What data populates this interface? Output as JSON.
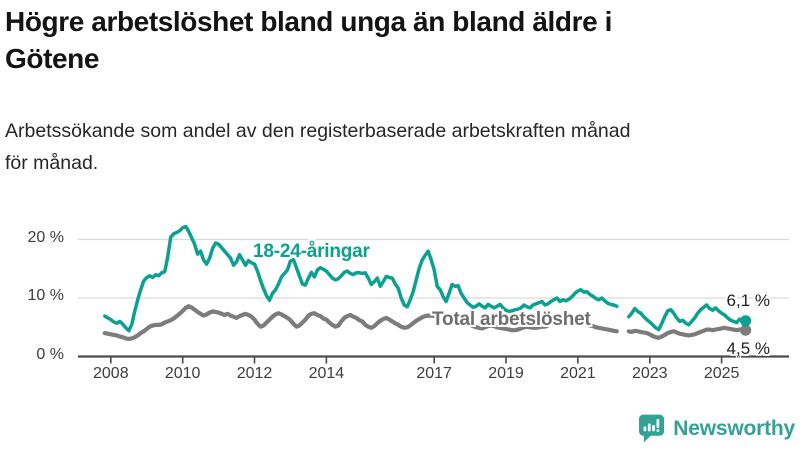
{
  "header": {
    "title": "Högre arbetslöshet bland unga än bland äldre i Götene",
    "title_lines": [
      "Högre arbetslöshet bland unga än bland äldre i",
      "Götene"
    ],
    "subtitle": "Arbetssökande som andel av den registerbaserade arbetskraften månad för månad.",
    "subtitle_lines": [
      "Arbetssökande som andel av den registerbaserade arbetskraften månad",
      "för månad."
    ]
  },
  "logo": {
    "text": "Newsworthy",
    "color": "#33a296"
  },
  "colors": {
    "accent_teal": "#0ba192",
    "line_gray": "#7c7c7c",
    "grid": "#d9d9d9",
    "axis": "#4a4a4a",
    "axis_text": "#3d3d3d",
    "value_text": "#1f1f1f"
  },
  "chart_data": {
    "type": "line",
    "title": "Högre arbetslöshet bland unga än bland äldre i Götene",
    "subtitle": "Arbetssökande som andel av den registerbaserade arbetskraften månad för månad.",
    "unit": "%",
    "grid": true,
    "legend_position": "inline-labels",
    "start_decimal_year": 2007.8333,
    "points_per_year": 12,
    "end_decimal_year": 2025.67,
    "ylim": [
      0,
      23
    ],
    "y_ticks": [
      {
        "value": 0,
        "label": "0 %"
      },
      {
        "value": 10,
        "label": "10 %"
      },
      {
        "value": 20,
        "label": "20 %"
      }
    ],
    "x_tick_years": [
      2008,
      2010,
      2012,
      2014,
      2017,
      2019,
      2021,
      2023,
      2025
    ],
    "note": "null values = gap in published statistics (spring 2022)",
    "series": [
      {
        "id": "young",
        "name": "18-24-åringar",
        "color": "#0ba192",
        "label_color": "#0ba192",
        "end_label": "6,1 %",
        "end_value": 6.1,
        "values": [
          6.9,
          6.6,
          6.3,
          5.9,
          5.7,
          6.0,
          5.5,
          4.9,
          4.4,
          5.5,
          7.8,
          9.7,
          11.4,
          12.9,
          13.5,
          13.8,
          13.5,
          14.0,
          13.8,
          14.3,
          14.5,
          17.0,
          20.4,
          21.0,
          21.2,
          21.5,
          22.0,
          22.2,
          21.4,
          20.3,
          19.2,
          17.5,
          18.0,
          16.5,
          15.8,
          16.8,
          18.5,
          19.4,
          19.2,
          18.6,
          18.0,
          17.4,
          16.8,
          15.6,
          16.2,
          17.4,
          16.5,
          15.6,
          16.4,
          16.0,
          15.8,
          14.6,
          13.0,
          11.6,
          10.4,
          9.6,
          10.8,
          11.4,
          12.4,
          13.6,
          14.2,
          14.8,
          16.3,
          16.6,
          15.2,
          13.8,
          12.4,
          12.2,
          13.4,
          14.4,
          13.6,
          14.8,
          15.2,
          14.9,
          14.6,
          14.0,
          13.4,
          13.1,
          13.3,
          13.8,
          14.4,
          14.6,
          14.2,
          14.0,
          14.3,
          14.3,
          14.2,
          14.3,
          13.4,
          12.3,
          12.8,
          13.4,
          12.0,
          12.8,
          13.7,
          13.5,
          13.4,
          12.4,
          11.7,
          10.0,
          8.8,
          8.5,
          9.7,
          11.1,
          13.1,
          15.1,
          16.5,
          17.3,
          18.0,
          16.5,
          14.8,
          12.0,
          11.4,
          10.2,
          9.4,
          10.8,
          12.3,
          12.0,
          12.1,
          10.8,
          10.0,
          9.2,
          8.8,
          8.4,
          8.6,
          9.0,
          8.6,
          8.3,
          8.9,
          8.6,
          8.3,
          8.6,
          8.9,
          8.3,
          7.9,
          7.7,
          7.8,
          8.0,
          8.1,
          8.3,
          8.8,
          8.5,
          8.3,
          8.8,
          9.0,
          9.2,
          9.4,
          8.8,
          9.0,
          9.4,
          9.7,
          10.0,
          9.4,
          9.7,
          9.5,
          9.8,
          10.2,
          10.8,
          11.2,
          11.4,
          11.0,
          11.1,
          10.6,
          10.3,
          9.9,
          9.7,
          10.0,
          9.5,
          9.1,
          8.9,
          8.8,
          8.6,
          null,
          null,
          null,
          6.8,
          7.4,
          8.2,
          7.7,
          7.4,
          6.8,
          6.3,
          5.9,
          5.4,
          4.9,
          4.6,
          5.6,
          6.8,
          7.8,
          8.0,
          7.4,
          6.6,
          6.0,
          6.2,
          5.7,
          5.4,
          6.0,
          6.6,
          7.4,
          8.0,
          8.4,
          8.8,
          8.2,
          7.9,
          8.3,
          7.8,
          7.4,
          7.1,
          6.6,
          6.2,
          6.0,
          5.8,
          6.4,
          6.2,
          6.1
        ]
      },
      {
        "id": "total",
        "name": "Total arbetslöshet",
        "color": "#7c7c7c",
        "label_color": "#6e6e6e",
        "end_label": "4,5 %",
        "end_value": 4.5,
        "values": [
          4.0,
          3.9,
          3.8,
          3.7,
          3.6,
          3.4,
          3.3,
          3.1,
          3.0,
          3.1,
          3.3,
          3.6,
          4.0,
          4.3,
          4.7,
          5.1,
          5.3,
          5.4,
          5.4,
          5.5,
          5.8,
          6.0,
          6.2,
          6.5,
          6.9,
          7.3,
          7.8,
          8.3,
          8.6,
          8.4,
          8.0,
          7.6,
          7.3,
          7.0,
          7.2,
          7.5,
          7.7,
          7.6,
          7.5,
          7.3,
          7.1,
          7.3,
          7.0,
          6.8,
          6.6,
          6.9,
          7.1,
          7.3,
          7.1,
          6.8,
          6.3,
          5.6,
          5.1,
          5.3,
          5.8,
          6.3,
          6.8,
          7.2,
          7.4,
          7.2,
          6.9,
          6.6,
          6.2,
          5.6,
          5.1,
          5.3,
          5.8,
          6.3,
          7.0,
          7.3,
          7.4,
          7.1,
          6.9,
          6.5,
          6.3,
          5.8,
          5.4,
          5.1,
          5.3,
          6.0,
          6.6,
          6.9,
          7.1,
          6.8,
          6.6,
          6.2,
          6.0,
          5.4,
          5.1,
          4.9,
          5.2,
          5.7,
          6.1,
          6.4,
          6.6,
          6.3,
          6.0,
          5.7,
          5.4,
          5.1,
          4.9,
          5.0,
          5.3,
          5.7,
          6.1,
          6.4,
          6.7,
          6.9,
          7.0,
          7.0,
          6.9,
          6.7,
          6.5,
          6.3,
          6.1,
          6.0,
          6.2,
          6.3,
          6.1,
          5.9,
          5.7,
          5.6,
          5.4,
          5.2,
          5.0,
          4.9,
          4.8,
          5.0,
          5.2,
          5.3,
          5.2,
          5.0,
          4.9,
          4.8,
          4.7,
          4.6,
          4.5,
          4.5,
          4.6,
          4.8,
          5.0,
          5.1,
          5.0,
          4.9,
          4.9,
          5.0,
          5.1,
          5.1,
          5.3,
          5.7,
          6.0,
          6.2,
          6.3,
          6.2,
          6.1,
          6.0,
          5.9,
          5.9,
          5.9,
          5.8,
          5.7,
          5.5,
          5.3,
          5.2,
          5.0,
          4.9,
          4.8,
          4.7,
          4.6,
          4.5,
          4.4,
          4.3,
          null,
          null,
          null,
          4.3,
          4.2,
          4.4,
          4.3,
          4.2,
          4.1,
          4.0,
          3.8,
          3.5,
          3.3,
          3.2,
          3.4,
          3.7,
          4.0,
          4.2,
          4.3,
          4.1,
          3.9,
          3.8,
          3.7,
          3.6,
          3.7,
          3.8,
          4.0,
          4.2,
          4.4,
          4.6,
          4.6,
          4.5,
          4.6,
          4.7,
          4.8,
          4.9,
          4.8,
          4.7,
          4.6,
          4.5,
          4.6,
          4.5,
          4.5
        ]
      }
    ]
  }
}
